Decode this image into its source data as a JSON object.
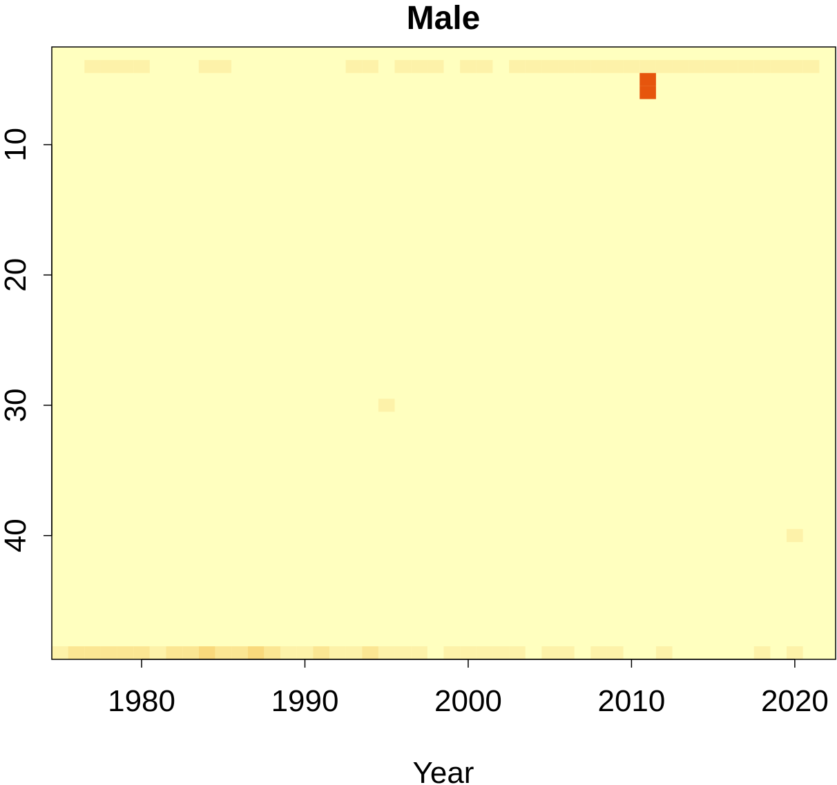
{
  "chart_data": {
    "type": "heatmap",
    "title": "Male",
    "xlabel": "Year",
    "xlim": [
      1974.5,
      2022.5
    ],
    "xticks": [
      1980,
      1990,
      2000,
      2010,
      2020
    ],
    "ylim": [
      2.5,
      49.5
    ],
    "yticks": [
      10,
      20,
      30,
      40
    ],
    "y_reversed": true,
    "zlim": [
      0,
      10
    ],
    "colorscale": [
      "#FFFFBF",
      "#F5C050",
      "#E6550D"
    ],
    "cell_x": [
      1977,
      1978,
      1979,
      1980,
      1984,
      1985,
      1993,
      1994,
      1996,
      1997,
      1998,
      2000,
      2001,
      2003,
      2004,
      2005,
      2006,
      2007,
      2008,
      2009,
      2010,
      2011,
      2012,
      2013,
      2014,
      2015,
      2016,
      2017,
      2018,
      2019,
      2020,
      2021,
      2011,
      2011,
      1995,
      2020,
      1975,
      1976,
      1977,
      1978,
      1979,
      1980,
      1981,
      1982,
      1983,
      1984,
      1985,
      1986,
      1987,
      1988,
      1989,
      1990,
      1991,
      1992,
      1993,
      1994,
      1995,
      1996,
      1997,
      1999,
      2000,
      2001,
      2002,
      2003,
      2005,
      2006,
      2008,
      2009,
      2012,
      2018,
      2020
    ],
    "cell_y": [
      4,
      4,
      4,
      4,
      4,
      4,
      4,
      4,
      4,
      4,
      4,
      4,
      4,
      4,
      4,
      4,
      4,
      4,
      4,
      4,
      4,
      4,
      4,
      4,
      4,
      4,
      4,
      4,
      4,
      4,
      4,
      4,
      5,
      6,
      30,
      40,
      49,
      49,
      49,
      49,
      49,
      49,
      49,
      49,
      49,
      49,
      49,
      49,
      49,
      49,
      49,
      49,
      49,
      49,
      49,
      49,
      49,
      49,
      49,
      49,
      49,
      49,
      49,
      49,
      49,
      49,
      49,
      49,
      49,
      49,
      49
    ],
    "cell_values": [
      1,
      1,
      1,
      1,
      1,
      1,
      1,
      1,
      1,
      1,
      1,
      1,
      1,
      1,
      1,
      1,
      1,
      1,
      1,
      1,
      1,
      1,
      1,
      1,
      1,
      1,
      1,
      1,
      1,
      1,
      1,
      1,
      10,
      10,
      1,
      1,
      1,
      2,
      2,
      2,
      2,
      2,
      1,
      2,
      2,
      3,
      2,
      2,
      3,
      2,
      1,
      1,
      2,
      1,
      1,
      2,
      1,
      1,
      1,
      1,
      1,
      1,
      1,
      1,
      1,
      1,
      1,
      1,
      1,
      1,
      1
    ]
  }
}
